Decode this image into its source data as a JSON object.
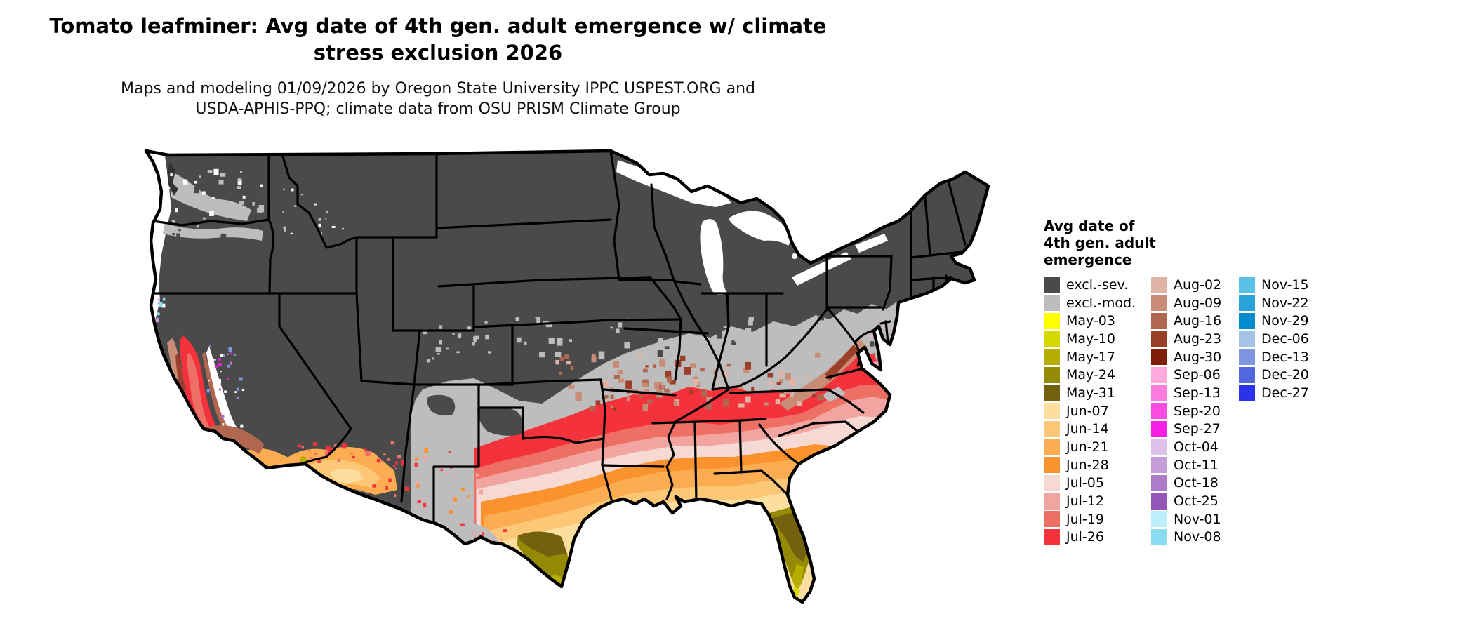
{
  "header": {
    "title_line1": "Tomato leafminer: Avg date of 4th gen. adult emergence w/ climate",
    "title_line2": "stress exclusion 2026",
    "subtitle_line1": "Maps and modeling 01/09/2026 by Oregon State University IPPC USPEST.ORG and",
    "subtitle_line2": "USDA-APHIS-PPQ; climate data from OSU PRISM Climate Group"
  },
  "legend": {
    "title_lines": [
      "Avg date of",
      "4th gen. adult",
      "emergence"
    ],
    "columns": [
      [
        {
          "label": "excl.-sev.",
          "color": "#4a4a4a"
        },
        {
          "label": "excl.-mod.",
          "color": "#bdbdbd"
        },
        {
          "label": "May-03",
          "color": "#ffff00"
        },
        {
          "label": "May-10",
          "color": "#d6d600"
        },
        {
          "label": "May-17",
          "color": "#b5ad00"
        },
        {
          "label": "May-24",
          "color": "#948a05"
        },
        {
          "label": "May-31",
          "color": "#73610f"
        },
        {
          "label": "Jun-07",
          "color": "#fcdf9e"
        },
        {
          "label": "Jun-14",
          "color": "#fcc878"
        },
        {
          "label": "Jun-21",
          "color": "#fcad52"
        },
        {
          "label": "Jun-28",
          "color": "#fa922e"
        },
        {
          "label": "Jul-05",
          "color": "#f6d9d3"
        },
        {
          "label": "Jul-12",
          "color": "#f2a4a0"
        },
        {
          "label": "Jul-19",
          "color": "#ee6f64"
        },
        {
          "label": "Jul-26",
          "color": "#f4323c"
        }
      ],
      [
        {
          "label": "Aug-02",
          "color": "#e0b3a7"
        },
        {
          "label": "Aug-09",
          "color": "#c98c77"
        },
        {
          "label": "Aug-16",
          "color": "#b16650"
        },
        {
          "label": "Aug-23",
          "color": "#9a4029"
        },
        {
          "label": "Aug-30",
          "color": "#7f1c0a"
        },
        {
          "label": "Sep-06",
          "color": "#ffa9dc"
        },
        {
          "label": "Sep-13",
          "color": "#fc7bdf"
        },
        {
          "label": "Sep-20",
          "color": "#fb4de1"
        },
        {
          "label": "Sep-27",
          "color": "#fa1fe4"
        },
        {
          "label": "Oct-04",
          "color": "#ddc1e8"
        },
        {
          "label": "Oct-11",
          "color": "#c59ed9"
        },
        {
          "label": "Oct-18",
          "color": "#ad7bc9"
        },
        {
          "label": "Oct-25",
          "color": "#9455b8"
        },
        {
          "label": "Nov-01",
          "color": "#bceefb"
        },
        {
          "label": "Nov-08",
          "color": "#8bdcf2"
        }
      ],
      [
        {
          "label": "Nov-15",
          "color": "#59c0e6"
        },
        {
          "label": "Nov-22",
          "color": "#28a3da"
        },
        {
          "label": "Nov-29",
          "color": "#008bcf"
        },
        {
          "label": "Dec-06",
          "color": "#a5c3e6"
        },
        {
          "label": "Dec-13",
          "color": "#7d96e2"
        },
        {
          "label": "Dec-20",
          "color": "#5367dd"
        },
        {
          "label": "Dec-27",
          "color": "#2b33e8"
        }
      ]
    ]
  },
  "map": {
    "region": "Contiguous United States",
    "base_color": "#4a4a4a",
    "excluded_moderate_color": "#bdbdbd",
    "border_color": "#000000",
    "no_data_color": "#ffffff"
  }
}
